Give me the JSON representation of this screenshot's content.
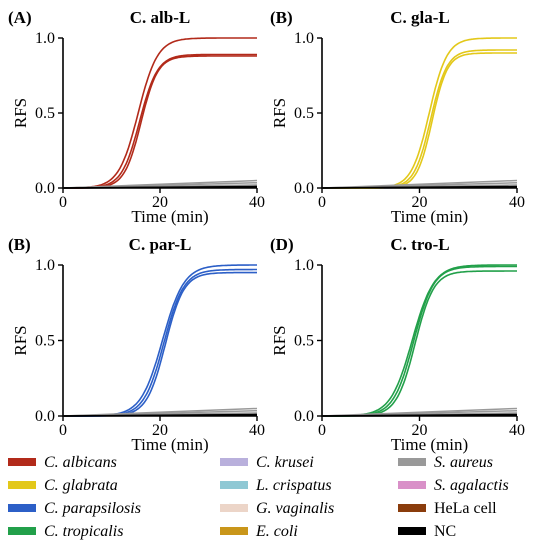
{
  "figure": {
    "panels": [
      {
        "panel_label": "(A)",
        "title": "C. alb-L",
        "xlabel": "Time (min)",
        "ylabel": "RFS"
      },
      {
        "panel_label": "(B)",
        "title": "C. gla-L",
        "xlabel": "Time (min)",
        "ylabel": "RFS"
      },
      {
        "panel_label": "(B)",
        "title": "C. par-L",
        "xlabel": "Time (min)",
        "ylabel": "RFS"
      },
      {
        "panel_label": "(D)",
        "title": "C. tro-L",
        "xlabel": "Time (min)",
        "ylabel": "RFS"
      }
    ],
    "xticks": [
      "0",
      "20",
      "40"
    ],
    "yticks": [
      "0.0",
      "0.5",
      "1.0"
    ],
    "legend": [
      {
        "label": "C. albicans",
        "italic": true,
        "color": "#b22a1a"
      },
      {
        "label": "C. krusei",
        "italic": true,
        "color": "#b9b0dc"
      },
      {
        "label": "S. aureus",
        "italic": true,
        "color": "#999999"
      },
      {
        "label": "C. glabrata",
        "italic": true,
        "color": "#e3c81a"
      },
      {
        "label": "L. crispatus",
        "italic": true,
        "color": "#8fc8d4"
      },
      {
        "label": "S. agalactis",
        "italic": true,
        "color": "#d990c8"
      },
      {
        "label": "C. parapsilosis",
        "italic": true,
        "color": "#2c5fc7"
      },
      {
        "label": "G. vaginalis",
        "italic": true,
        "color": "#ecd5c8"
      },
      {
        "label": "HeLa cell",
        "italic": false,
        "color": "#8a3c0c"
      },
      {
        "label": "C. tropicalis",
        "italic": true,
        "color": "#22a04a"
      },
      {
        "label": "E. coli",
        "italic": true,
        "color": "#c9961a"
      },
      {
        "label": "NC",
        "italic": false,
        "color": "#000000"
      }
    ]
  },
  "chart_data": [
    {
      "type": "line",
      "title": "C. alb-L",
      "xlabel": "Time (min)",
      "ylabel": "RFS",
      "xlim": [
        0,
        40
      ],
      "ylim": [
        0,
        1
      ],
      "series": [
        {
          "color": "#b22a1a",
          "midpoint": 15.5,
          "steepness": 0.5,
          "replicate_plateaus": [
            1.0,
            0.89,
            0.88
          ]
        },
        {
          "color": "#999999",
          "background_end_value": 0.05
        },
        {
          "color": "#000000",
          "background_end_value": 0.01
        }
      ]
    },
    {
      "type": "line",
      "title": "C. gla-L",
      "xlabel": "Time (min)",
      "ylabel": "RFS",
      "xlim": [
        0,
        40
      ],
      "ylim": [
        0,
        1
      ],
      "series": [
        {
          "color": "#e3c81a",
          "midpoint": 22.0,
          "steepness": 0.55,
          "replicate_plateaus": [
            1.0,
            0.92,
            0.9
          ]
        },
        {
          "color": "#999999",
          "background_end_value": 0.05
        },
        {
          "color": "#000000",
          "background_end_value": 0.01
        }
      ]
    },
    {
      "type": "line",
      "title": "C. par-L",
      "xlabel": "Time (min)",
      "ylabel": "RFS",
      "xlim": [
        0,
        40
      ],
      "ylim": [
        0,
        1
      ],
      "series": [
        {
          "color": "#2c5fc7",
          "midpoint": 20.5,
          "steepness": 0.45,
          "replicate_plateaus": [
            1.0,
            0.97,
            0.95
          ]
        },
        {
          "color": "#999999",
          "background_end_value": 0.05
        },
        {
          "color": "#000000",
          "background_end_value": 0.01
        }
      ]
    },
    {
      "type": "line",
      "title": "C. tro-L",
      "xlabel": "Time (min)",
      "ylabel": "RFS",
      "xlim": [
        0,
        40
      ],
      "ylim": [
        0,
        1
      ],
      "series": [
        {
          "color": "#22a04a",
          "midpoint": 18.5,
          "steepness": 0.45,
          "replicate_plateaus": [
            1.0,
            0.99,
            0.96
          ]
        },
        {
          "color": "#999999",
          "background_end_value": 0.05
        },
        {
          "color": "#000000",
          "background_end_value": 0.01
        }
      ]
    }
  ]
}
